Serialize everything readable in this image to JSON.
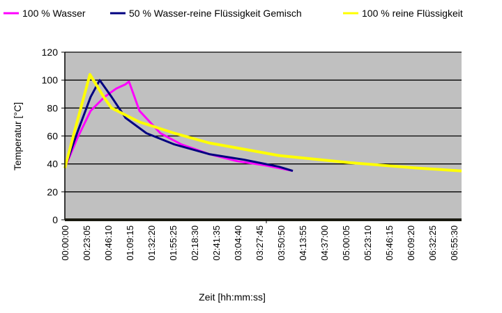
{
  "chart_data": {
    "type": "line",
    "title": "",
    "xlabel": "Zeit [hh:mm:ss]",
    "ylabel": "Temperatur  [°C]",
    "ylim": [
      0,
      120
    ],
    "yticks": [
      0,
      20,
      40,
      60,
      80,
      100,
      120
    ],
    "xlim": [
      "00:00:00",
      "07:03:43"
    ],
    "xticks": [
      "00:00:00",
      "00:23:05",
      "00:46:10",
      "01:09:15",
      "01:32:20",
      "01:55:25",
      "02:18:30",
      "02:41:35",
      "03:04:40",
      "03:27:45",
      "03:50:50",
      "04:13:55",
      "04:37:00",
      "05:00:05",
      "05:23:10",
      "05:46:15",
      "06:09:20",
      "06:32:25",
      "06:55:30"
    ],
    "grid": "horizontal",
    "plot_background": "#c0c0c0",
    "legend_position": "top",
    "series": [
      {
        "name": "100 % Wasser",
        "color": "#ff00ff",
        "points": [
          [
            "00:00:00",
            37
          ],
          [
            "00:13:00",
            58
          ],
          [
            "00:27:33",
            78
          ],
          [
            "00:42:27",
            88
          ],
          [
            "00:55:00",
            94
          ],
          [
            "01:04:47",
            97
          ],
          [
            "01:08:31",
            99
          ],
          [
            "01:19:41",
            78
          ],
          [
            "01:42:01",
            62
          ],
          [
            "02:04:22",
            54
          ],
          [
            "02:34:09",
            47
          ],
          [
            "03:03:56",
            42
          ],
          [
            "03:33:43",
            39
          ],
          [
            "04:03:30",
            35
          ]
        ]
      },
      {
        "name": "50 % Wasser-reine Flüssigkeit Gemisch",
        "color": "#000080",
        "points": [
          [
            "00:00:00",
            37
          ],
          [
            "00:13:00",
            62
          ],
          [
            "00:27:33",
            88
          ],
          [
            "00:37:14",
            100
          ],
          [
            "00:49:54",
            88
          ],
          [
            "01:04:47",
            73
          ],
          [
            "01:27:08",
            62
          ],
          [
            "01:56:55",
            54
          ],
          [
            "02:34:09",
            47
          ],
          [
            "03:11:23",
            43
          ],
          [
            "03:48:37",
            38
          ],
          [
            "04:03:30",
            35
          ]
        ]
      },
      {
        "name": "100 % reine Flüssigkeit",
        "color": "#ffff00",
        "points": [
          [
            "00:00:00",
            37
          ],
          [
            "00:13:00",
            70
          ],
          [
            "00:26:48",
            104
          ],
          [
            "00:42:27",
            87
          ],
          [
            "00:49:54",
            80
          ],
          [
            "01:19:41",
            70
          ],
          [
            "01:56:55",
            62
          ],
          [
            "02:34:09",
            55
          ],
          [
            "03:48:37",
            46
          ],
          [
            "05:03:05",
            41
          ],
          [
            "06:17:33",
            37
          ],
          [
            "07:03:43",
            35
          ]
        ]
      }
    ]
  }
}
